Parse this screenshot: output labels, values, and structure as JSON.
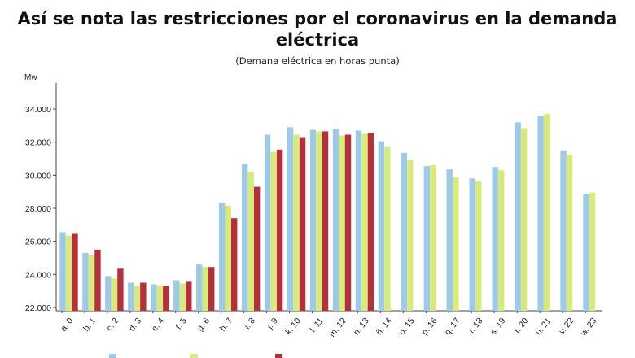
{
  "chart_data": {
    "type": "bar",
    "title": "Así se nota las restricciones por el coronavirus en la demanda eléctrica",
    "subtitle": "(Demana eléctrica en horas punta)",
    "ylabel": "Mw",
    "ylim": [
      22000,
      35000
    ],
    "yticks": [
      "22.000",
      "24.000",
      "26.000",
      "28.000",
      "30.000",
      "32.000",
      "34.000"
    ],
    "ytick_values": [
      22000,
      24000,
      26000,
      28000,
      30000,
      32000,
      34000
    ],
    "grid": false,
    "categories": [
      "a. 0",
      "b. 1",
      "c. 2",
      "d. 3",
      "e. 4",
      "f. 5",
      "g. 6",
      "h. 7",
      "i. 8",
      "j. 9",
      "k. 10",
      "l. 11",
      "m. 12",
      "n. 13",
      "ñ. 14",
      "o. 15",
      "p. 16",
      "q. 17",
      "r. 18",
      "s. 19",
      "t. 20",
      "u. 21",
      "v. 22",
      "w. 23"
    ],
    "series": [
      {
        "name": "",
        "color": "#9ec9ea",
        "values": [
          26550,
          25300,
          23900,
          23500,
          23400,
          23650,
          24600,
          28300,
          30700,
          32450,
          32900,
          32750,
          32800,
          32700,
          32050,
          31350,
          30550,
          30350,
          29800,
          30500,
          33200,
          33600,
          31500,
          28850
        ]
      },
      {
        "name": "",
        "color": "#d7ea7a",
        "values": [
          26350,
          25200,
          23750,
          23300,
          23350,
          23450,
          24450,
          28150,
          30200,
          31400,
          32450,
          32650,
          32400,
          32500,
          31700,
          30900,
          30600,
          29850,
          29650,
          30300,
          32850,
          33700,
          31250,
          28950
        ]
      },
      {
        "name": "",
        "color": "#b5303a",
        "values": [
          26500,
          25500,
          24350,
          23500,
          23300,
          23600,
          24450,
          27400,
          29300,
          31550,
          32300,
          32650,
          32450,
          32550,
          null,
          null,
          null,
          null,
          null,
          null,
          null,
          null,
          null,
          null
        ]
      }
    ],
    "legend_position": "bottom"
  }
}
